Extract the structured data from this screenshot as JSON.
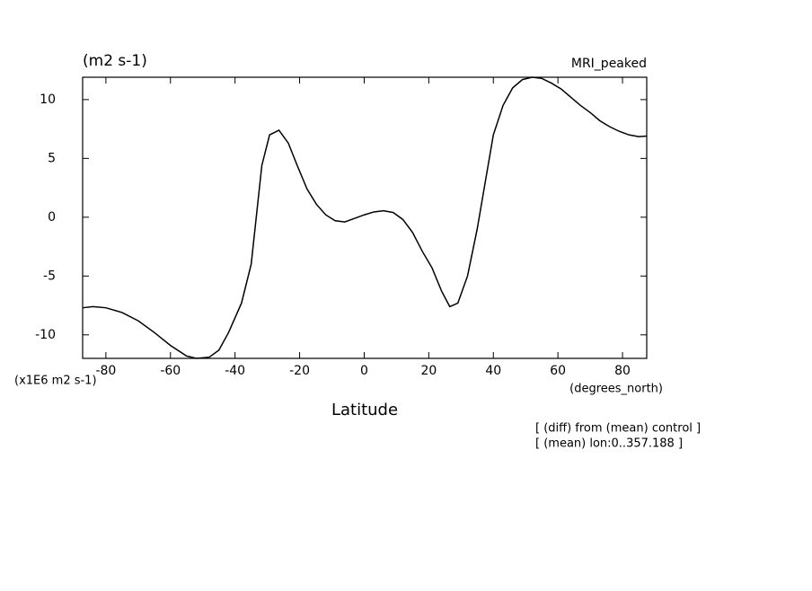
{
  "chart_data": {
    "type": "line",
    "title": "(m2 s-1)",
    "subtitle": "MRI_peaked",
    "y_unit_label": "(x1E6 m2 s-1)",
    "x_unit_label": "(degrees_north)",
    "x_label": "Latitude",
    "notes": [
      "[ (diff) from (mean) control ]",
      "[ (mean) lon:0..357.188 ]"
    ],
    "xlim": [
      -87.2,
      87.5
    ],
    "ylim": [
      -12,
      11.9
    ],
    "xticks": [
      -80,
      -60,
      -40,
      -20,
      0,
      20,
      40,
      60,
      80
    ],
    "yticks": [
      -10,
      -5,
      0,
      5,
      10
    ],
    "series": [
      {
        "color": "#000000",
        "x": [
          -87.2,
          -84,
          -80,
          -75,
          -70,
          -65,
          -60,
          -55,
          -52,
          -48,
          -45,
          -42,
          -38,
          -35,
          -31.7,
          -29.3,
          -26.4,
          -23.5,
          -20.6,
          -17.7,
          -14.8,
          -11.9,
          -9,
          -6,
          -3,
          0,
          3,
          6,
          9,
          12,
          15,
          18,
          21,
          24,
          26.5,
          29,
          32,
          35,
          37.5,
          40,
          43,
          46,
          49,
          52,
          55,
          58,
          61,
          64,
          67,
          70,
          73,
          76,
          79,
          82,
          85,
          87.5
        ],
        "values": [
          -7.7,
          -7.6,
          -7.7,
          -8.1,
          -8.8,
          -9.8,
          -10.9,
          -11.8,
          -12.0,
          -11.9,
          -11.3,
          -9.8,
          -7.3,
          -4.0,
          4.4,
          7.0,
          7.4,
          6.3,
          4.3,
          2.4,
          1.1,
          0.2,
          -0.3,
          -0.4,
          -0.1,
          0.2,
          0.45,
          0.55,
          0.4,
          -0.2,
          -1.3,
          -2.9,
          -4.3,
          -6.3,
          -7.6,
          -7.3,
          -5.0,
          -1.0,
          3.0,
          7.0,
          9.5,
          11.0,
          11.7,
          11.9,
          11.8,
          11.4,
          10.9,
          10.2,
          9.5,
          8.9,
          8.2,
          7.7,
          7.3,
          7.0,
          6.85,
          6.9
        ]
      }
    ]
  }
}
